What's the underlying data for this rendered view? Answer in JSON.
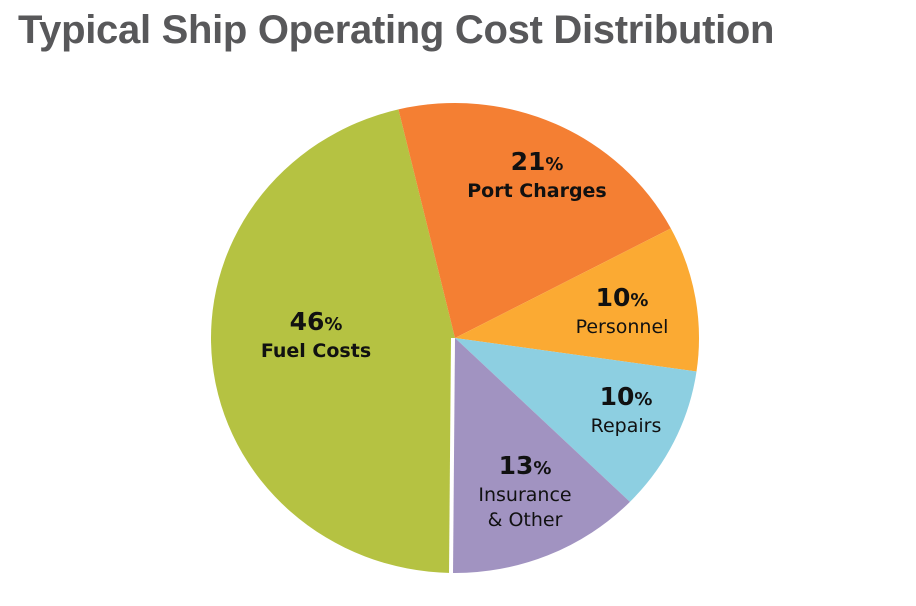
{
  "title": "Typical Ship Operating Cost Distribution",
  "chart_data": {
    "type": "pie",
    "title": "Typical Ship Operating Cost Distribution",
    "start": "bottom",
    "direction": "clockwise",
    "slices": [
      {
        "label": "Fuel Costs",
        "label_lines": [
          "Fuel Costs"
        ],
        "value": 46,
        "color": "#b5c242"
      },
      {
        "label": "Port Charges",
        "label_lines": [
          "Port Charges"
        ],
        "value": 21,
        "color": "#f47f33"
      },
      {
        "label": "Personnel",
        "label_lines": [
          "Personnel"
        ],
        "value": 10,
        "color": "#fbaa33"
      },
      {
        "label": "Repairs",
        "label_lines": [
          "Repairs"
        ],
        "value": 10,
        "color": "#8dcfe1"
      },
      {
        "label": "Insurance & Other",
        "label_lines": [
          "Insurance",
          "& Other"
        ],
        "value": 13,
        "color": "#a193c1"
      }
    ]
  }
}
